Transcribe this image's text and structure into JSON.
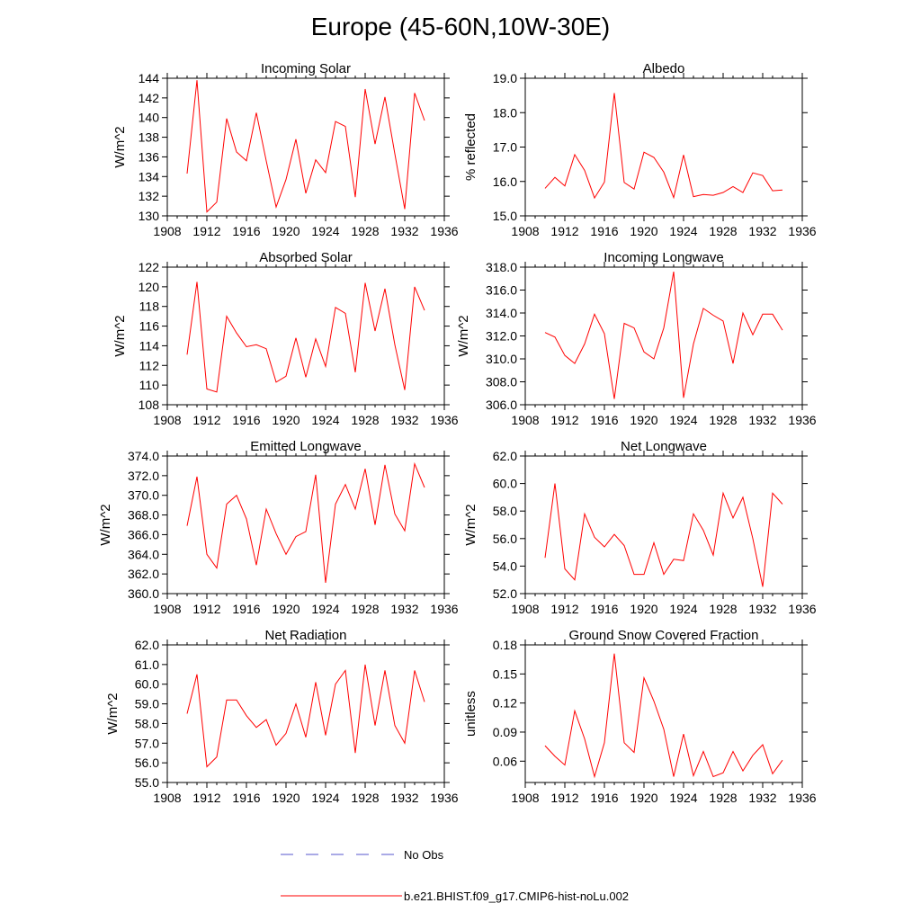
{
  "figure": {
    "title": "Europe (45-60N,10W-30E)",
    "line_color": "#ff0000",
    "obs_color": "#5555cc"
  },
  "legend": {
    "obs_label": "No Obs",
    "model_label": "b.e21.BHIST.f09_g17.CMIP6-hist-noLu.002"
  },
  "chart_data": [
    {
      "type": "line",
      "title": "Incoming Solar",
      "ylabel": "W/m^2",
      "xlim": [
        1908,
        1936
      ],
      "xticks": [
        1908,
        1912,
        1916,
        1920,
        1924,
        1928,
        1932,
        1936
      ],
      "ylim": [
        130,
        144
      ],
      "yticks": [
        "130",
        "132",
        "134",
        "136",
        "138",
        "140",
        "142",
        "144"
      ],
      "ytick_values": [
        130,
        132,
        134,
        136,
        138,
        140,
        142,
        144
      ],
      "x": [
        1910,
        1911,
        1912,
        1913,
        1914,
        1915,
        1916,
        1917,
        1918,
        1919,
        1920,
        1921,
        1922,
        1923,
        1924,
        1925,
        1926,
        1927,
        1928,
        1929,
        1930,
        1931,
        1932,
        1933,
        1934
      ],
      "values": [
        134.3,
        143.8,
        130.4,
        131.4,
        139.9,
        136.5,
        135.6,
        140.5,
        135.6,
        130.9,
        133.7,
        137.8,
        132.3,
        135.7,
        134.4,
        139.6,
        139.1,
        131.9,
        142.9,
        137.3,
        142.1,
        136.3,
        130.7,
        142.5,
        139.7
      ]
    },
    {
      "type": "line",
      "title": "Albedo",
      "ylabel": "% reflected",
      "xlim": [
        1908,
        1936
      ],
      "xticks": [
        1908,
        1912,
        1916,
        1920,
        1924,
        1928,
        1932,
        1936
      ],
      "ylim": [
        15.0,
        19.0
      ],
      "yticks": [
        "15.0",
        "16.0",
        "17.0",
        "18.0",
        "19.0"
      ],
      "ytick_values": [
        15,
        16,
        17,
        18,
        19
      ],
      "x": [
        1910,
        1911,
        1912,
        1913,
        1914,
        1915,
        1916,
        1917,
        1918,
        1919,
        1920,
        1921,
        1922,
        1923,
        1924,
        1925,
        1926,
        1927,
        1928,
        1929,
        1930,
        1931,
        1932,
        1933,
        1934
      ],
      "values": [
        15.8,
        16.12,
        15.87,
        16.78,
        16.32,
        15.52,
        15.98,
        18.57,
        15.97,
        15.78,
        16.85,
        16.7,
        16.27,
        15.53,
        16.77,
        15.56,
        15.62,
        15.6,
        15.68,
        15.85,
        15.68,
        16.25,
        16.17,
        15.73,
        15.75
      ]
    },
    {
      "type": "line",
      "title": "Absorbed Solar",
      "ylabel": "W/m^2",
      "xlim": [
        1908,
        1936
      ],
      "xticks": [
        1908,
        1912,
        1916,
        1920,
        1924,
        1928,
        1932,
        1936
      ],
      "ylim": [
        108,
        122
      ],
      "yticks": [
        "108",
        "110",
        "112",
        "114",
        "116",
        "118",
        "120",
        "122"
      ],
      "ytick_values": [
        108,
        110,
        112,
        114,
        116,
        118,
        120,
        122
      ],
      "x": [
        1910,
        1911,
        1912,
        1913,
        1914,
        1915,
        1916,
        1917,
        1918,
        1919,
        1920,
        1921,
        1922,
        1923,
        1924,
        1925,
        1926,
        1927,
        1928,
        1929,
        1930,
        1931,
        1932,
        1933,
        1934
      ],
      "values": [
        113.1,
        120.5,
        109.6,
        109.3,
        117.0,
        115.3,
        113.9,
        114.1,
        113.7,
        110.3,
        110.9,
        114.8,
        110.8,
        114.7,
        111.9,
        117.9,
        117.3,
        111.3,
        120.4,
        115.5,
        119.8,
        114.1,
        109.5,
        120.0,
        117.6
      ]
    },
    {
      "type": "line",
      "title": "Incoming Longwave",
      "ylabel": "W/m^2",
      "xlim": [
        1908,
        1936
      ],
      "xticks": [
        1908,
        1912,
        1916,
        1920,
        1924,
        1928,
        1932,
        1936
      ],
      "ylim": [
        306.0,
        318.0
      ],
      "yticks": [
        "306.0",
        "308.0",
        "310.0",
        "312.0",
        "314.0",
        "316.0",
        "318.0"
      ],
      "ytick_values": [
        306,
        308,
        310,
        312,
        314,
        316,
        318
      ],
      "x": [
        1910,
        1911,
        1912,
        1913,
        1914,
        1915,
        1916,
        1917,
        1918,
        1919,
        1920,
        1921,
        1922,
        1923,
        1924,
        1925,
        1926,
        1927,
        1928,
        1929,
        1930,
        1931,
        1932,
        1933,
        1934
      ],
      "values": [
        312.3,
        311.9,
        310.3,
        309.6,
        311.3,
        313.9,
        312.2,
        306.5,
        313.1,
        312.7,
        310.6,
        310.0,
        312.7,
        317.6,
        306.6,
        311.3,
        314.4,
        313.8,
        313.3,
        309.6,
        314.0,
        312.1,
        313.9,
        313.9,
        312.5
      ]
    },
    {
      "type": "line",
      "title": "Emitted Longwave",
      "ylabel": "W/m^2",
      "xlim": [
        1908,
        1936
      ],
      "xticks": [
        1908,
        1912,
        1916,
        1920,
        1924,
        1928,
        1932,
        1936
      ],
      "ylim": [
        360.0,
        374.0
      ],
      "yticks": [
        "360.0",
        "362.0",
        "364.0",
        "366.0",
        "368.0",
        "370.0",
        "372.0",
        "374.0"
      ],
      "ytick_values": [
        360,
        362,
        364,
        366,
        368,
        370,
        372,
        374
      ],
      "x": [
        1910,
        1911,
        1912,
        1913,
        1914,
        1915,
        1916,
        1917,
        1918,
        1919,
        1920,
        1921,
        1922,
        1923,
        1924,
        1925,
        1926,
        1927,
        1928,
        1929,
        1930,
        1931,
        1932,
        1933,
        1934
      ],
      "values": [
        366.9,
        371.9,
        364.0,
        362.6,
        369.1,
        370.0,
        367.6,
        362.9,
        368.6,
        366.1,
        364.0,
        365.8,
        366.3,
        372.1,
        361.1,
        369.1,
        371.1,
        368.6,
        372.7,
        367.0,
        373.1,
        368.1,
        366.4,
        373.2,
        370.8
      ]
    },
    {
      "type": "line",
      "title": "Net Longwave",
      "ylabel": "W/m^2",
      "xlim": [
        1908,
        1936
      ],
      "xticks": [
        1908,
        1912,
        1916,
        1920,
        1924,
        1928,
        1932,
        1936
      ],
      "ylim": [
        52.0,
        62.0
      ],
      "yticks": [
        "52.0",
        "54.0",
        "56.0",
        "58.0",
        "60.0",
        "62.0"
      ],
      "ytick_values": [
        52,
        54,
        56,
        58,
        60,
        62
      ],
      "x": [
        1910,
        1911,
        1912,
        1913,
        1914,
        1915,
        1916,
        1917,
        1918,
        1919,
        1920,
        1921,
        1922,
        1923,
        1924,
        1925,
        1926,
        1927,
        1928,
        1929,
        1930,
        1931,
        1932,
        1933,
        1934
      ],
      "values": [
        54.6,
        60.0,
        53.8,
        53.0,
        57.8,
        56.1,
        55.4,
        56.3,
        55.5,
        53.4,
        53.4,
        55.7,
        53.4,
        54.5,
        54.4,
        57.8,
        56.6,
        54.8,
        59.3,
        57.5,
        59.0,
        56.0,
        52.5,
        59.3,
        58.5
      ]
    },
    {
      "type": "line",
      "title": "Net Radiation",
      "ylabel": "W/m^2",
      "xlim": [
        1908,
        1936
      ],
      "xticks": [
        1908,
        1912,
        1916,
        1920,
        1924,
        1928,
        1932,
        1936
      ],
      "ylim": [
        55.0,
        62.0
      ],
      "yticks": [
        "55.0",
        "56.0",
        "57.0",
        "58.0",
        "59.0",
        "60.0",
        "61.0",
        "62.0"
      ],
      "ytick_values": [
        55,
        56,
        57,
        58,
        59,
        60,
        61,
        62
      ],
      "x": [
        1910,
        1911,
        1912,
        1913,
        1914,
        1915,
        1916,
        1917,
        1918,
        1919,
        1920,
        1921,
        1922,
        1923,
        1924,
        1925,
        1926,
        1927,
        1928,
        1929,
        1930,
        1931,
        1932,
        1933,
        1934
      ],
      "values": [
        58.5,
        60.5,
        55.8,
        56.3,
        59.2,
        59.2,
        58.4,
        57.8,
        58.2,
        56.9,
        57.5,
        59.0,
        57.3,
        60.1,
        57.4,
        60.0,
        60.7,
        56.5,
        61.0,
        57.9,
        60.7,
        57.9,
        57.0,
        60.7,
        59.1
      ]
    },
    {
      "type": "line",
      "title": "Ground Snow Covered Fraction",
      "ylabel": "unitless",
      "xlim": [
        1908,
        1936
      ],
      "xticks": [
        1908,
        1912,
        1916,
        1920,
        1924,
        1928,
        1932,
        1936
      ],
      "ylim": [
        0.038,
        0.18
      ],
      "yticks": [
        "0.06",
        "0.09",
        "0.12",
        "0.15",
        "0.18"
      ],
      "ytick_values": [
        0.06,
        0.09,
        0.12,
        0.15,
        0.18
      ],
      "x": [
        1910,
        1911,
        1912,
        1913,
        1914,
        1915,
        1916,
        1917,
        1918,
        1919,
        1920,
        1921,
        1922,
        1923,
        1924,
        1925,
        1926,
        1927,
        1928,
        1929,
        1930,
        1931,
        1932,
        1933,
        1934
      ],
      "values": [
        0.076,
        0.065,
        0.056,
        0.112,
        0.083,
        0.044,
        0.079,
        0.171,
        0.079,
        0.069,
        0.146,
        0.122,
        0.093,
        0.044,
        0.088,
        0.045,
        0.07,
        0.044,
        0.048,
        0.07,
        0.05,
        0.066,
        0.077,
        0.047,
        0.061
      ]
    }
  ]
}
